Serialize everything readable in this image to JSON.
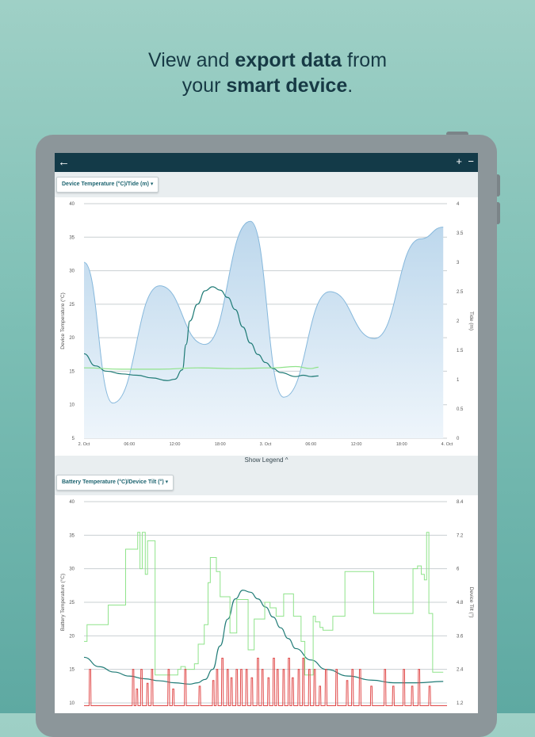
{
  "headline": {
    "part1": "View and ",
    "bold1": "export data",
    "part2": " from",
    "part3": "your ",
    "bold2": "smart device",
    "part4": "."
  },
  "appbar": {
    "back_icon": "←",
    "zoom_in_icon": "+",
    "zoom_out_icon": "−"
  },
  "chart1": {
    "selector_label": "Device Temperature (°C)/Tide (m) ▾",
    "show_legend_label": "Show Legend ^"
  },
  "chart2": {
    "selector_label": "Battery Temperature (°C)/Device Tilt (°) ▾"
  },
  "colors": {
    "tide_fill": "#bcd7ec",
    "tide_line": "#86b8dc",
    "device_temp": "#1f7b76",
    "light_green": "#8fe38a",
    "red": "#e04848"
  },
  "chart_data": [
    {
      "type": "area",
      "ylabel": "Device Temperature (°C)",
      "y2label": "Tide (m)",
      "ylim": [
        5,
        40
      ],
      "y2lim": [
        0,
        4
      ],
      "y_ticks": [
        "40",
        "35",
        "30",
        "25",
        "20",
        "15",
        "10",
        "5"
      ],
      "y2_ticks": [
        "4",
        "3.5",
        "3",
        "2.5",
        "2",
        "1.5",
        "1",
        "0.5",
        "0"
      ],
      "x_ticks": [
        "2. Oct",
        "06:00",
        "12:00",
        "18:00",
        "3. Oct",
        "06:00",
        "12:00",
        "18:00",
        "4. Oct"
      ],
      "x_range_hours": [
        0,
        48
      ],
      "grid": true,
      "series": [
        {
          "kind": "area",
          "axis": "right",
          "x": [
            0,
            3.8,
            10,
            16,
            22,
            26.4,
            32.5,
            38.4,
            44.5,
            47.5
          ],
          "values": [
            3.0,
            0.6,
            2.6,
            1.6,
            3.7,
            0.7,
            2.5,
            1.7,
            3.4,
            3.6
          ]
        },
        {
          "kind": "line",
          "axis": "left",
          "x": [
            0,
            1.5,
            3,
            5,
            7,
            9,
            11,
            12,
            13,
            13.5,
            14,
            15,
            16,
            17,
            18,
            19,
            20,
            21,
            22,
            23,
            24,
            25,
            26,
            28,
            29,
            30,
            31
          ],
          "values": [
            17.6,
            15.8,
            15.0,
            14.6,
            14.4,
            14.0,
            13.6,
            13.8,
            15.2,
            19.0,
            22.5,
            25.0,
            27.0,
            27.6,
            27.1,
            26.0,
            24.2,
            21.6,
            19.2,
            17.5,
            16.3,
            15.4,
            14.8,
            14.2,
            14.4,
            14.2,
            14.3
          ]
        },
        {
          "kind": "line",
          "axis": "left",
          "x": [
            0,
            5,
            10,
            15,
            20,
            25,
            28,
            30,
            31
          ],
          "values": [
            15.5,
            15.3,
            15.3,
            15.5,
            15.4,
            15.5,
            15.7,
            15.4,
            15.6
          ]
        }
      ]
    },
    {
      "type": "line",
      "ylabel": "Battery Temperature (°C)",
      "y2label": "Device Tilt (°)",
      "ylim": [
        10,
        40
      ],
      "y2lim": [
        1.2,
        8.4
      ],
      "y_ticks": [
        "40",
        "35",
        "30",
        "25",
        "20",
        "15",
        "10"
      ],
      "y2_ticks": [
        "8.4",
        "7.2",
        "6",
        "4.8",
        "3.6",
        "2.4",
        "1.2"
      ],
      "grid": true,
      "series": [
        {
          "kind": "line",
          "axis": "left",
          "x": [
            0,
            2,
            4,
            6,
            8,
            10,
            12,
            14,
            15,
            16,
            17,
            18,
            19,
            20,
            21,
            22,
            23,
            24,
            25,
            26,
            27,
            28,
            30,
            32,
            35,
            38,
            41,
            44,
            47.5
          ],
          "values": [
            16.8,
            15.4,
            14.6,
            14.0,
            13.6,
            13.3,
            13.0,
            12.8,
            13.0,
            13.5,
            15.0,
            18.5,
            22.5,
            25.5,
            26.8,
            26.5,
            25.5,
            24.3,
            22.8,
            21.2,
            19.6,
            18.1,
            16.4,
            15.0,
            14.0,
            13.4,
            13.0,
            13.0,
            13.2
          ]
        },
        {
          "kind": "step",
          "axis": "right",
          "x": [
            0,
            0.4,
            2.8,
            3.2,
            5.0,
            5.5,
            6.5,
            7.1,
            7.4,
            7.7,
            8.1,
            8.4,
            9.4,
            11.2,
            12.4,
            12.8,
            13.4,
            14.6,
            15.1,
            15.9,
            16.4,
            16.7,
            17.5,
            18.0,
            19.3,
            20.2,
            21.7,
            22.5,
            23.9,
            24.6,
            25.4,
            26.4,
            27.7,
            28.7,
            29.2,
            30.3,
            30.6,
            31.2,
            31.6,
            32.9,
            34.5,
            38.3,
            43.1,
            43.5,
            44.1,
            44.6,
            45.0,
            45.3,
            45.6,
            46.1,
            47.5
          ],
          "values": [
            3.4,
            4.0,
            4.0,
            4.7,
            4.7,
            6.7,
            6.7,
            7.3,
            6.0,
            7.3,
            5.8,
            7.0,
            2.2,
            2.2,
            2.4,
            2.5,
            2.4,
            2.6,
            3.3,
            4.0,
            5.5,
            6.4,
            5.9,
            5.0,
            3.7,
            4.9,
            3.1,
            4.2,
            4.8,
            4.6,
            4.3,
            5.1,
            4.3,
            3.4,
            2.2,
            4.3,
            4.1,
            3.9,
            3.8,
            4.3,
            5.9,
            4.4,
            4.4,
            6.0,
            6.1,
            5.8,
            5.6,
            7.3,
            4.4,
            2.3,
            2.3
          ]
        },
        {
          "kind": "spikes",
          "axis": "right",
          "base": 1.1,
          "x": [
            0.8,
            6.5,
            7.0,
            7.6,
            8.4,
            9.0,
            11.2,
            11.8,
            13.4,
            15.3,
            17.1,
            17.6,
            18.3,
            19.0,
            19.5,
            20.2,
            20.8,
            21.5,
            22.2,
            23.0,
            23.6,
            24.4,
            25.1,
            25.6,
            26.4,
            27.1,
            27.6,
            28.4,
            29.0,
            29.8,
            30.5,
            31.2,
            32.0,
            33.4,
            34.8,
            35.5,
            36.5,
            38.0,
            39.8,
            40.9,
            42.3,
            43.4,
            44.3,
            45.7
          ],
          "values": [
            2.4,
            2.4,
            1.7,
            2.4,
            1.9,
            2.4,
            2.4,
            1.7,
            2.4,
            1.8,
            2.0,
            2.4,
            2.8,
            2.4,
            2.1,
            2.4,
            2.4,
            2.4,
            2.1,
            2.8,
            2.4,
            2.1,
            2.8,
            2.4,
            2.4,
            2.8,
            2.1,
            2.4,
            2.8,
            2.4,
            2.4,
            1.8,
            2.4,
            2.4,
            2.0,
            2.4,
            2.4,
            1.8,
            2.4,
            1.8,
            2.4,
            1.8,
            2.4,
            1.8
          ]
        }
      ]
    }
  ]
}
